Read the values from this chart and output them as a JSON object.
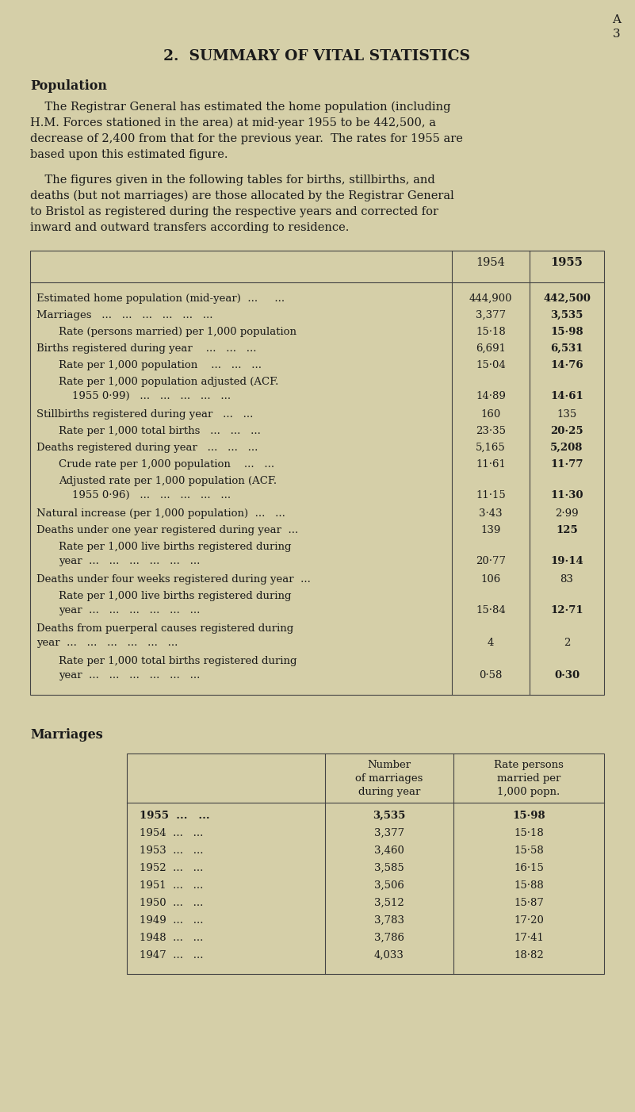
{
  "bg_color": "#d5cfa8",
  "text_color": "#1a1a1a",
  "page_label_a": "A",
  "page_label_3": "3",
  "main_title": "2.  SUMMARY OF VITAL STATISTICS",
  "section1_title": "Population",
  "para1_lines": [
    "    The Registrar General has estimated the home population (including",
    "H.M. Forces stationed in the area) at mid-year 1955 to be 442,500, a",
    "decrease of 2,400 from that for the previous year.  The rates for 1955 are",
    "based upon this estimated figure."
  ],
  "para2_lines": [
    "    The figures given in the following tables for births, stillbirths, and",
    "deaths (but not marriages) are those allocated by the Registrar General",
    "to Bristol as registered during the respective years and corrected for",
    "inward and outward transfers according to residence."
  ],
  "table1_col1954": "1954",
  "table1_col1955": "1955",
  "table1_rows": [
    {
      "lines": [
        "Estimated home population (mid-year)  ...     ..."
      ],
      "v1954": "444,900",
      "v1955": "442,500",
      "bold1955": true,
      "indent": false,
      "val_line": 0
    },
    {
      "lines": [
        "Marriages   ...   ...   ...   ...   ...   ..."
      ],
      "v1954": "3,377",
      "v1955": "3,535",
      "bold1955": true,
      "indent": false,
      "val_line": 0
    },
    {
      "lines": [
        "Rate (persons married) per 1,000 population"
      ],
      "v1954": "15·18",
      "v1955": "15·98",
      "bold1955": true,
      "indent": true,
      "val_line": 0
    },
    {
      "lines": [
        "Births registered during year    ...   ...   ..."
      ],
      "v1954": "6,691",
      "v1955": "6,531",
      "bold1955": true,
      "indent": false,
      "val_line": 0
    },
    {
      "lines": [
        "Rate per 1,000 population    ...   ...   ..."
      ],
      "v1954": "15·04",
      "v1955": "14·76",
      "bold1955": true,
      "indent": true,
      "val_line": 0
    },
    {
      "lines": [
        "Rate per 1,000 population adjusted (ACF.",
        "    1955 0·99)   ...   ...   ...   ...   ..."
      ],
      "v1954": "14·89",
      "v1955": "14·61",
      "bold1955": true,
      "indent": true,
      "val_line": 1
    },
    {
      "lines": [
        "Stillbirths registered during year   ...   ..."
      ],
      "v1954": "160",
      "v1955": "135",
      "bold1955": false,
      "indent": false,
      "val_line": 0
    },
    {
      "lines": [
        "Rate per 1,000 total births   ...   ...   ..."
      ],
      "v1954": "23·35",
      "v1955": "20·25",
      "bold1955": true,
      "indent": true,
      "val_line": 0
    },
    {
      "lines": [
        "Deaths registered during year   ...   ...   ..."
      ],
      "v1954": "5,165",
      "v1955": "5,208",
      "bold1955": true,
      "indent": false,
      "val_line": 0
    },
    {
      "lines": [
        "Crude rate per 1,000 population    ...   ..."
      ],
      "v1954": "11·61",
      "v1955": "11·77",
      "bold1955": true,
      "indent": true,
      "val_line": 0
    },
    {
      "lines": [
        "Adjusted rate per 1,000 population (ACF.",
        "    1955 0·96)   ...   ...   ...   ...   ..."
      ],
      "v1954": "11·15",
      "v1955": "11·30",
      "bold1955": true,
      "indent": true,
      "val_line": 1
    },
    {
      "lines": [
        "Natural increase (per 1,000 population)  ...   ..."
      ],
      "v1954": "3·43",
      "v1955": "2·99",
      "bold1955": false,
      "indent": false,
      "val_line": 0
    },
    {
      "lines": [
        "Deaths under one year registered during year  ..."
      ],
      "v1954": "139",
      "v1955": "125",
      "bold1955": true,
      "indent": false,
      "val_line": 0
    },
    {
      "lines": [
        "Rate per 1,000 live births registered during",
        "year  ...   ...   ...   ...   ...   ..."
      ],
      "v1954": "20·77",
      "v1955": "19·14",
      "bold1955": true,
      "indent": true,
      "val_line": 1
    },
    {
      "lines": [
        "Deaths under four weeks registered during year  ..."
      ],
      "v1954": "106",
      "v1955": "83",
      "bold1955": false,
      "indent": false,
      "val_line": 0
    },
    {
      "lines": [
        "Rate per 1,000 live births registered during",
        "year  ...   ...   ...   ...   ...   ..."
      ],
      "v1954": "15·84",
      "v1955": "12·71",
      "bold1955": true,
      "indent": true,
      "val_line": 1
    },
    {
      "lines": [
        "Deaths from puerperal causes registered during",
        "year  ...   ...   ...   ...   ...   ..."
      ],
      "v1954": "4",
      "v1955": "2",
      "bold1955": false,
      "indent": false,
      "val_line": 1
    },
    {
      "lines": [
        "Rate per 1,000 total births registered during",
        "year  ...   ...   ...   ...   ...   ..."
      ],
      "v1954": "0·58",
      "v1955": "0·30",
      "bold1955": true,
      "indent": true,
      "val_line": 1
    }
  ],
  "section2_title": "Marriages",
  "marriages_header_col2": [
    "Number",
    "of marriages",
    "during year"
  ],
  "marriages_header_col3": [
    "Rate persons",
    "married per",
    "1,000 popn."
  ],
  "marriages_rows": [
    {
      "year": "1955",
      "num": "3,535",
      "rate": "15·98",
      "bold": true
    },
    {
      "year": "1954",
      "num": "3,377",
      "rate": "15·18",
      "bold": false
    },
    {
      "year": "1953",
      "num": "3,460",
      "rate": "15·58",
      "bold": false
    },
    {
      "year": "1952",
      "num": "3,585",
      "rate": "16·15",
      "bold": false
    },
    {
      "year": "1951",
      "num": "3,506",
      "rate": "15·88",
      "bold": false
    },
    {
      "year": "1950",
      "num": "3,512",
      "rate": "15·87",
      "bold": false
    },
    {
      "year": "1949",
      "num": "3,783",
      "rate": "17·20",
      "bold": false
    },
    {
      "year": "1948",
      "num": "3,786",
      "rate": "17·41",
      "bold": false
    },
    {
      "year": "1947",
      "num": "4,033",
      "rate": "18·82",
      "bold": false
    }
  ]
}
